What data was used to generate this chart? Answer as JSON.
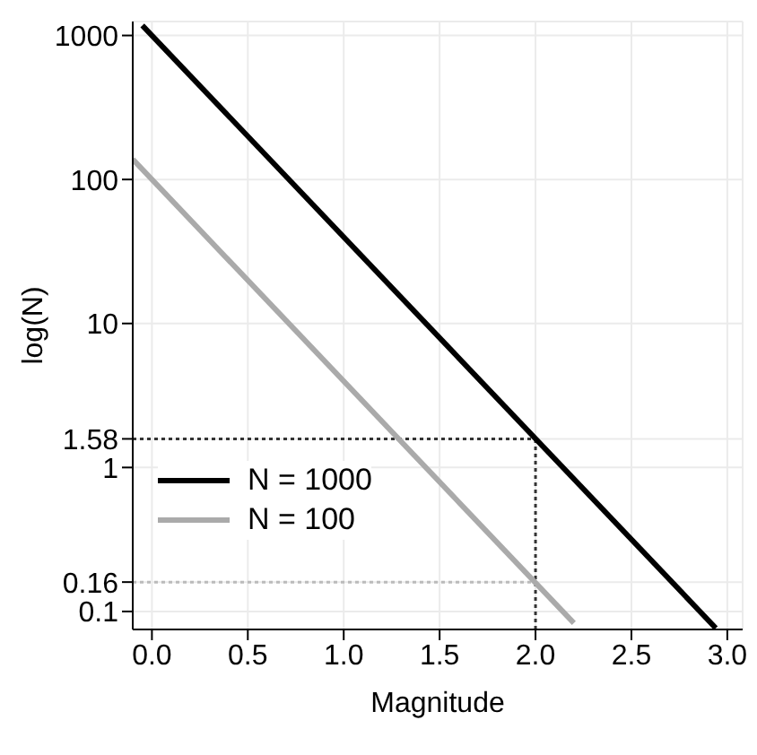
{
  "chart_data": {
    "type": "line",
    "xlabel": "Magnitude",
    "ylabel": "log(N)",
    "log": "y",
    "grid": true,
    "legend": "bottom left",
    "line_style": "solid",
    "marker": "none",
    "xlim": [
      -0.1,
      3.08
    ],
    "xticks": [
      {
        "value": 0,
        "label": "0.0"
      },
      0.5,
      {
        "value": 1,
        "label": "1.0"
      },
      1.5,
      {
        "value": 2,
        "label": "2.0"
      },
      2.5,
      {
        "value": 3,
        "label": "3.0"
      }
    ],
    "ylim": [
      0.075,
      1250
    ],
    "yticks": [
      0.1,
      0.16,
      1,
      1.58,
      10,
      100,
      1000
    ],
    "series": [
      {
        "name": "N = 1000",
        "color": "#000000",
        "x": [
          -0.05,
          2.94
        ],
        "values": [
          1175,
          0.0766
        ]
      },
      {
        "name": "N = 100",
        "color": "#aaaaaa",
        "x": [
          -0.1,
          2.2
        ],
        "values": [
          138,
          0.083
        ]
      }
    ],
    "ref_lines": [
      {
        "axis": "y",
        "value": 1.58,
        "color": "#333333",
        "line_style": "dotted"
      },
      {
        "axis": "y",
        "value": 0.16,
        "color": "#bbbbbb",
        "line_style": "dotted"
      },
      {
        "axis": "x",
        "value": 2,
        "color": "#333333",
        "line_style": "dotted"
      }
    ]
  }
}
